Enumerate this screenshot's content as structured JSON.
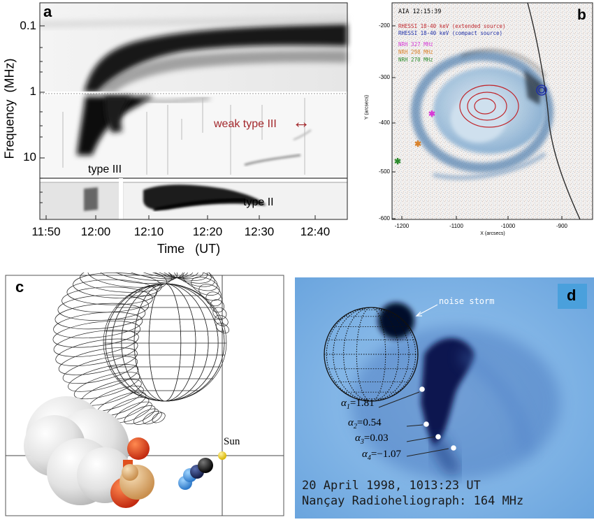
{
  "panel_a": {
    "label": "a",
    "y_axis_label": "Frequency  (MHz)",
    "x_axis_label": "Time   (UT)",
    "y_ticks": [
      "0.1",
      "1",
      "10"
    ],
    "x_ticks": [
      "11:50",
      "12:00",
      "12:10",
      "12:20",
      "12:30",
      "12:40"
    ],
    "annotations": {
      "weak_type_iii": "weak type III",
      "arrow": "↔",
      "type_iii": "type III",
      "type_ii": "type II"
    },
    "colors": {
      "annotation": "#a3282c"
    }
  },
  "panel_b": {
    "label": "b",
    "timestamp": "AIA 12:15:39",
    "legend": [
      {
        "text": "RHESSI 18-40 keV (extended source)",
        "color": "#c0272d"
      },
      {
        "text": "RHESSI 18-40 keV (compact source)",
        "color": "#1f2fa8"
      },
      {
        "text": "NRH 327 MHz",
        "color": "#d63ad6"
      },
      {
        "text": "NRH 298 MHz",
        "color": "#d9822b"
      },
      {
        "text": "NRH 270 MHz",
        "color": "#2e8b2e"
      }
    ],
    "y_label": "Y (arcsecs)",
    "x_label": "X (arcsecs)",
    "y_ticks": [
      "-200",
      "-300",
      "-400",
      "-500",
      "-600"
    ],
    "x_ticks": [
      "-1200",
      "-1100",
      "-1000",
      "-900"
    ]
  },
  "panel_c": {
    "label": "c",
    "sun_label": "Sun"
  },
  "panel_d": {
    "label": "d",
    "noise_storm": "noise storm",
    "alphas": [
      {
        "sym": "α",
        "sub": "1",
        "val": "=1.81"
      },
      {
        "sym": "α",
        "sub": "2",
        "val": "=0.54"
      },
      {
        "sym": "α",
        "sub": "3",
        "val": "=0.03"
      },
      {
        "sym": "α",
        "sub": "4",
        "val": "=−1.07"
      }
    ],
    "caption_line1": "20 April 1998, 1013:23 UT",
    "caption_line2": "Nançay Radioheliograph: 164 MHz"
  }
}
